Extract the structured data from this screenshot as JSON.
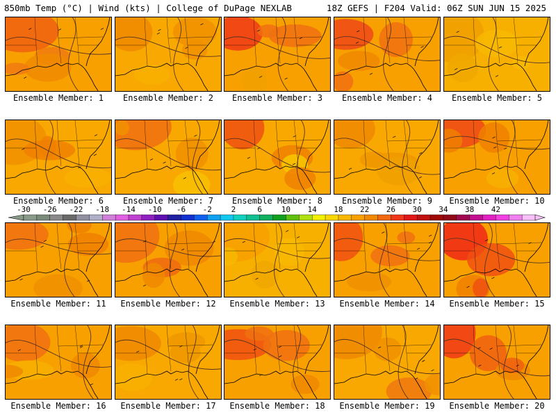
{
  "header": {
    "left": "850mb Temp (°C) | Wind (kts) | College of DuPage NEXLAB",
    "right": "18Z GEFS | F204 Valid: 06Z SUN JUN 15 2025"
  },
  "members": [
    {
      "label": "Ensemble Member: 1",
      "base": "#f8a000",
      "warm": [
        "#f06010",
        "#f07a10",
        "#f08a00"
      ]
    },
    {
      "label": "Ensemble Member: 2",
      "base": "#f8a800",
      "warm": [
        "#f08a00",
        "#f09000",
        "#f8b000"
      ]
    },
    {
      "label": "Ensemble Member: 3",
      "base": "#f8a000",
      "warm": [
        "#f03818",
        "#f07010",
        "#f0a000"
      ]
    },
    {
      "label": "Ensemble Member: 4",
      "base": "#f8a000",
      "warm": [
        "#f04818",
        "#f07010",
        "#f08800"
      ]
    },
    {
      "label": "Ensemble Member: 5",
      "base": "#f8b000",
      "warm": [
        "#f0a000",
        "#f8b800",
        "#f0a800"
      ]
    },
    {
      "label": "Ensemble Member: 6",
      "base": "#f8a800",
      "warm": [
        "#f09000",
        "#f08000",
        "#f8b000"
      ]
    },
    {
      "label": "Ensemble Member: 7",
      "base": "#f8a800",
      "warm": [
        "#f07010",
        "#f09000",
        "#f8c000"
      ]
    },
    {
      "label": "Ensemble Member: 8",
      "base": "#f8a800",
      "warm": [
        "#f05010",
        "#f08000",
        "#f8c800"
      ]
    },
    {
      "label": "Ensemble Member: 9",
      "base": "#f8a800",
      "warm": [
        "#f08800",
        "#f09800",
        "#f0a000"
      ]
    },
    {
      "label": "Ensemble Member: 10",
      "base": "#f8a000",
      "warm": [
        "#f04818",
        "#f08000",
        "#f8b000"
      ]
    },
    {
      "label": "Ensemble Member: 11",
      "base": "#f8a000",
      "warm": [
        "#f07010",
        "#f08000",
        "#f09000"
      ]
    },
    {
      "label": "Ensemble Member: 12",
      "base": "#f8a000",
      "warm": [
        "#f07010",
        "#f08800",
        "#f06810"
      ]
    },
    {
      "label": "Ensemble Member: 13",
      "base": "#f8b000",
      "warm": [
        "#f8a000",
        "#f8b800",
        "#f0a800"
      ]
    },
    {
      "label": "Ensemble Member: 14",
      "base": "#f8a000",
      "warm": [
        "#f05010",
        "#f07010",
        "#f09000"
      ]
    },
    {
      "label": "Ensemble Member: 15",
      "base": "#f8a000",
      "warm": [
        "#f02818",
        "#f05010",
        "#f08000"
      ]
    },
    {
      "label": "Ensemble Member: 16",
      "base": "#f8a000",
      "warm": [
        "#f07010",
        "#f08800",
        "#f8b000"
      ]
    },
    {
      "label": "Ensemble Member: 17",
      "base": "#f8a800",
      "warm": [
        "#f08800",
        "#f09800",
        "#f8b000"
      ]
    },
    {
      "label": "Ensemble Member: 18",
      "base": "#f8a000",
      "warm": [
        "#f05010",
        "#f07010",
        "#f08800"
      ]
    },
    {
      "label": "Ensemble Member: 19",
      "base": "#f8a800",
      "warm": [
        "#f08800",
        "#f09000",
        "#f07810"
      ]
    },
    {
      "label": "Ensemble Member: 20",
      "base": "#f8a000",
      "warm": [
        "#f03818",
        "#f06010",
        "#f08800"
      ]
    }
  ],
  "colorbar": {
    "ticks": [
      "-30",
      "-26",
      "-22",
      "-18",
      "-14",
      "-10",
      "-6",
      "-2",
      "2",
      "6",
      "10",
      "14",
      "18",
      "22",
      "26",
      "30",
      "34",
      "38",
      "42"
    ],
    "colors": [
      "#8a9a8a",
      "#7a8a7a",
      "#8a8a8a",
      "#6a6a6a",
      "#9090a0",
      "#b0b0c8",
      "#d080d8",
      "#e060e0",
      "#c040d0",
      "#9020c0",
      "#6010b0",
      "#2020a0",
      "#1030d0",
      "#1060f0",
      "#10a0f0",
      "#10c8f0",
      "#10d0c0",
      "#10c090",
      "#10b060",
      "#10a020",
      "#60c010",
      "#b0e010",
      "#f0f000",
      "#f8d800",
      "#f8b800",
      "#f8a000",
      "#f08800",
      "#f06810",
      "#f03818",
      "#e01818",
      "#c01010",
      "#a00808",
      "#900818",
      "#a00850",
      "#c01090",
      "#e020c0",
      "#f040e0",
      "#f080f0",
      "#f8c0f8"
    ]
  }
}
